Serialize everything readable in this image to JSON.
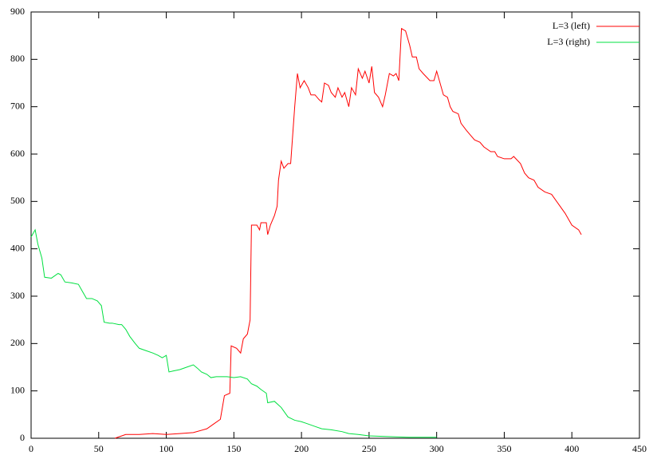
{
  "chart_data": {
    "type": "line",
    "xlim": [
      0,
      450
    ],
    "xticks": [
      0,
      50,
      100,
      150,
      200,
      250,
      300,
      350,
      400,
      450
    ],
    "ylim": [
      0,
      900
    ],
    "yticks": [
      0,
      100,
      200,
      300,
      400,
      500,
      600,
      700,
      800,
      900
    ],
    "grid": false,
    "legend": "top-right",
    "series": [
      {
        "name": "L=3 (left)",
        "color": "#ff0000",
        "x": [
          62,
          70,
          80,
          90,
          100,
          110,
          120,
          130,
          135,
          140,
          143,
          147,
          148,
          152,
          155,
          157,
          160,
          162,
          163,
          167,
          169,
          170,
          174,
          175,
          177,
          180,
          182,
          183,
          185,
          187,
          190,
          192,
          195,
          197,
          199,
          202,
          205,
          207,
          210,
          213,
          215,
          217,
          220,
          222,
          225,
          227,
          230,
          232,
          235,
          237,
          240,
          242,
          245,
          247,
          250,
          252,
          254,
          257,
          260,
          262,
          265,
          268,
          270,
          272,
          274,
          277,
          280,
          282,
          285,
          287,
          290,
          295,
          298,
          300,
          302,
          305,
          308,
          310,
          312,
          316,
          318,
          322,
          325,
          328,
          332,
          335,
          340,
          343,
          345,
          350,
          355,
          357,
          362,
          365,
          368,
          372,
          375,
          380,
          385,
          390,
          395,
          400,
          405,
          407
        ],
        "values": [
          0,
          8,
          8,
          10,
          8,
          10,
          12,
          20,
          30,
          40,
          90,
          95,
          195,
          190,
          180,
          210,
          220,
          250,
          450,
          450,
          440,
          455,
          455,
          430,
          450,
          470,
          490,
          545,
          585,
          570,
          580,
          580,
          700,
          770,
          740,
          755,
          740,
          725,
          725,
          715,
          710,
          750,
          745,
          730,
          720,
          740,
          720,
          730,
          700,
          740,
          725,
          780,
          760,
          775,
          750,
          785,
          730,
          720,
          700,
          725,
          770,
          765,
          770,
          755,
          865,
          860,
          830,
          805,
          805,
          780,
          770,
          755,
          755,
          775,
          755,
          725,
          720,
          700,
          690,
          685,
          665,
          650,
          640,
          630,
          625,
          615,
          605,
          605,
          595,
          590,
          590,
          595,
          580,
          560,
          550,
          545,
          530,
          520,
          515,
          495,
          475,
          450,
          440,
          430
        ]
      },
      {
        "name": "L=3 (right)",
        "color": "#00e040",
        "x": [
          0,
          3,
          5,
          8,
          10,
          15,
          20,
          22,
          25,
          30,
          35,
          38,
          41,
          45,
          49,
          52,
          54,
          58,
          60,
          65,
          67,
          70,
          73,
          77,
          80,
          85,
          90,
          94,
          97,
          100,
          102,
          105,
          110,
          115,
          120,
          123,
          126,
          130,
          133,
          137,
          145,
          150,
          155,
          160,
          163,
          167,
          170,
          174,
          175,
          180,
          185,
          190,
          195,
          200,
          205,
          210,
          215,
          222,
          230,
          235,
          242,
          250,
          260,
          270,
          280,
          290,
          300
        ],
        "values": [
          425,
          440,
          410,
          380,
          340,
          338,
          348,
          345,
          330,
          328,
          325,
          310,
          295,
          295,
          290,
          280,
          245,
          243,
          243,
          240,
          240,
          230,
          215,
          200,
          190,
          185,
          180,
          175,
          170,
          175,
          140,
          142,
          145,
          150,
          155,
          148,
          140,
          135,
          128,
          130,
          130,
          128,
          130,
          125,
          115,
          110,
          103,
          95,
          75,
          78,
          65,
          45,
          38,
          35,
          30,
          25,
          20,
          18,
          14,
          10,
          8,
          5,
          4,
          3,
          2,
          2,
          2
        ]
      }
    ]
  }
}
